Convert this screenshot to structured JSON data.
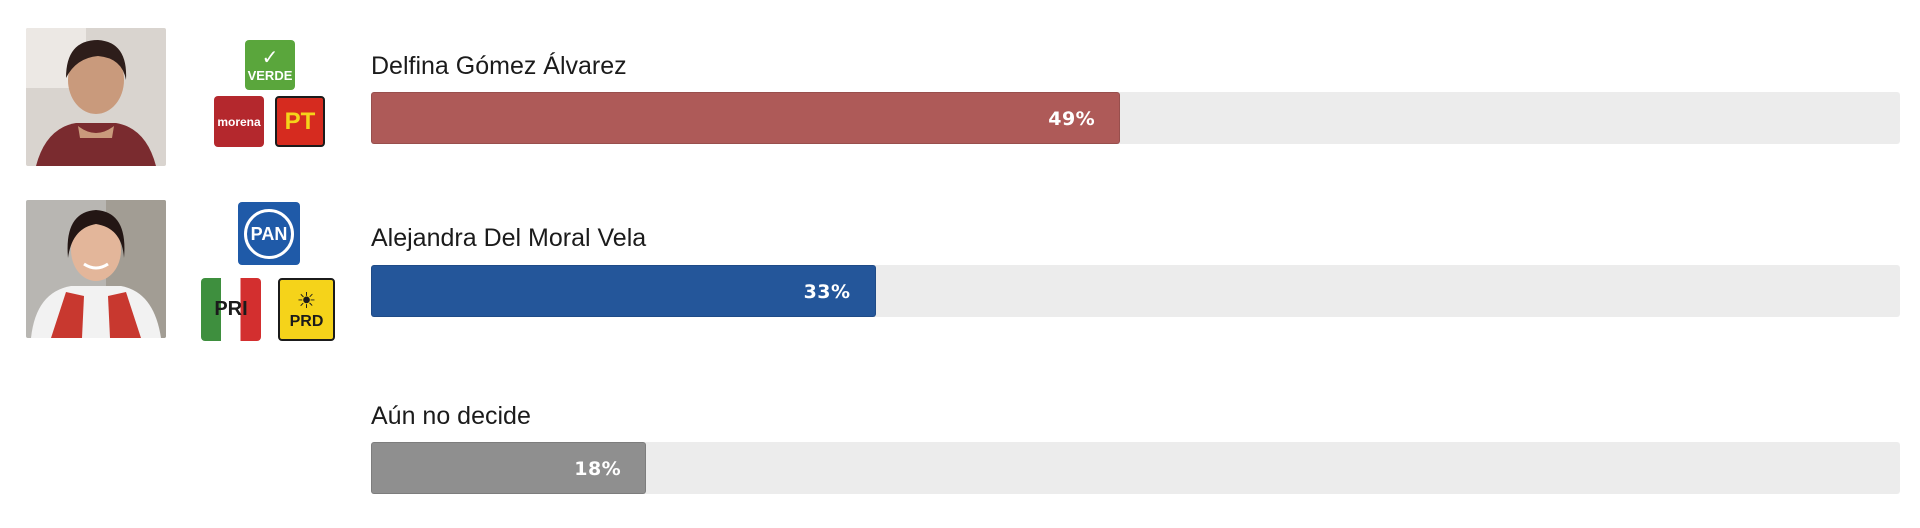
{
  "chart_data": {
    "type": "bar",
    "orientation": "horizontal",
    "categories": [
      "Delfina Gómez Álvarez",
      "Alejandra Del Moral Vela",
      "Aún no decide"
    ],
    "values": [
      49,
      33,
      18
    ],
    "value_labels": [
      "49%",
      "33%",
      "18%"
    ],
    "xlim": [
      0,
      100
    ],
    "colors": [
      "#ae5a58",
      "#24569a",
      "#8f8f8f"
    ],
    "title": "",
    "xlabel": "",
    "ylabel": ""
  },
  "candidates": [
    {
      "parties": [
        {
          "icon": "verde-logo",
          "text": "VERDE",
          "color": "#5aa63c"
        },
        {
          "icon": "morena-logo",
          "text": "morena",
          "color": "#b4282d"
        },
        {
          "icon": "pt-logo",
          "text": "PT",
          "color": "#d62b1f"
        }
      ]
    },
    {
      "parties": [
        {
          "icon": "pan-logo",
          "text": "PAN",
          "color": "#1f5aa8"
        },
        {
          "icon": "pri-logo",
          "text": "PRI",
          "color": "#d32f2f"
        },
        {
          "icon": "prd-logo",
          "text": "PRD",
          "color": "#f5d31a"
        }
      ]
    }
  ],
  "track_color": "#ececec"
}
